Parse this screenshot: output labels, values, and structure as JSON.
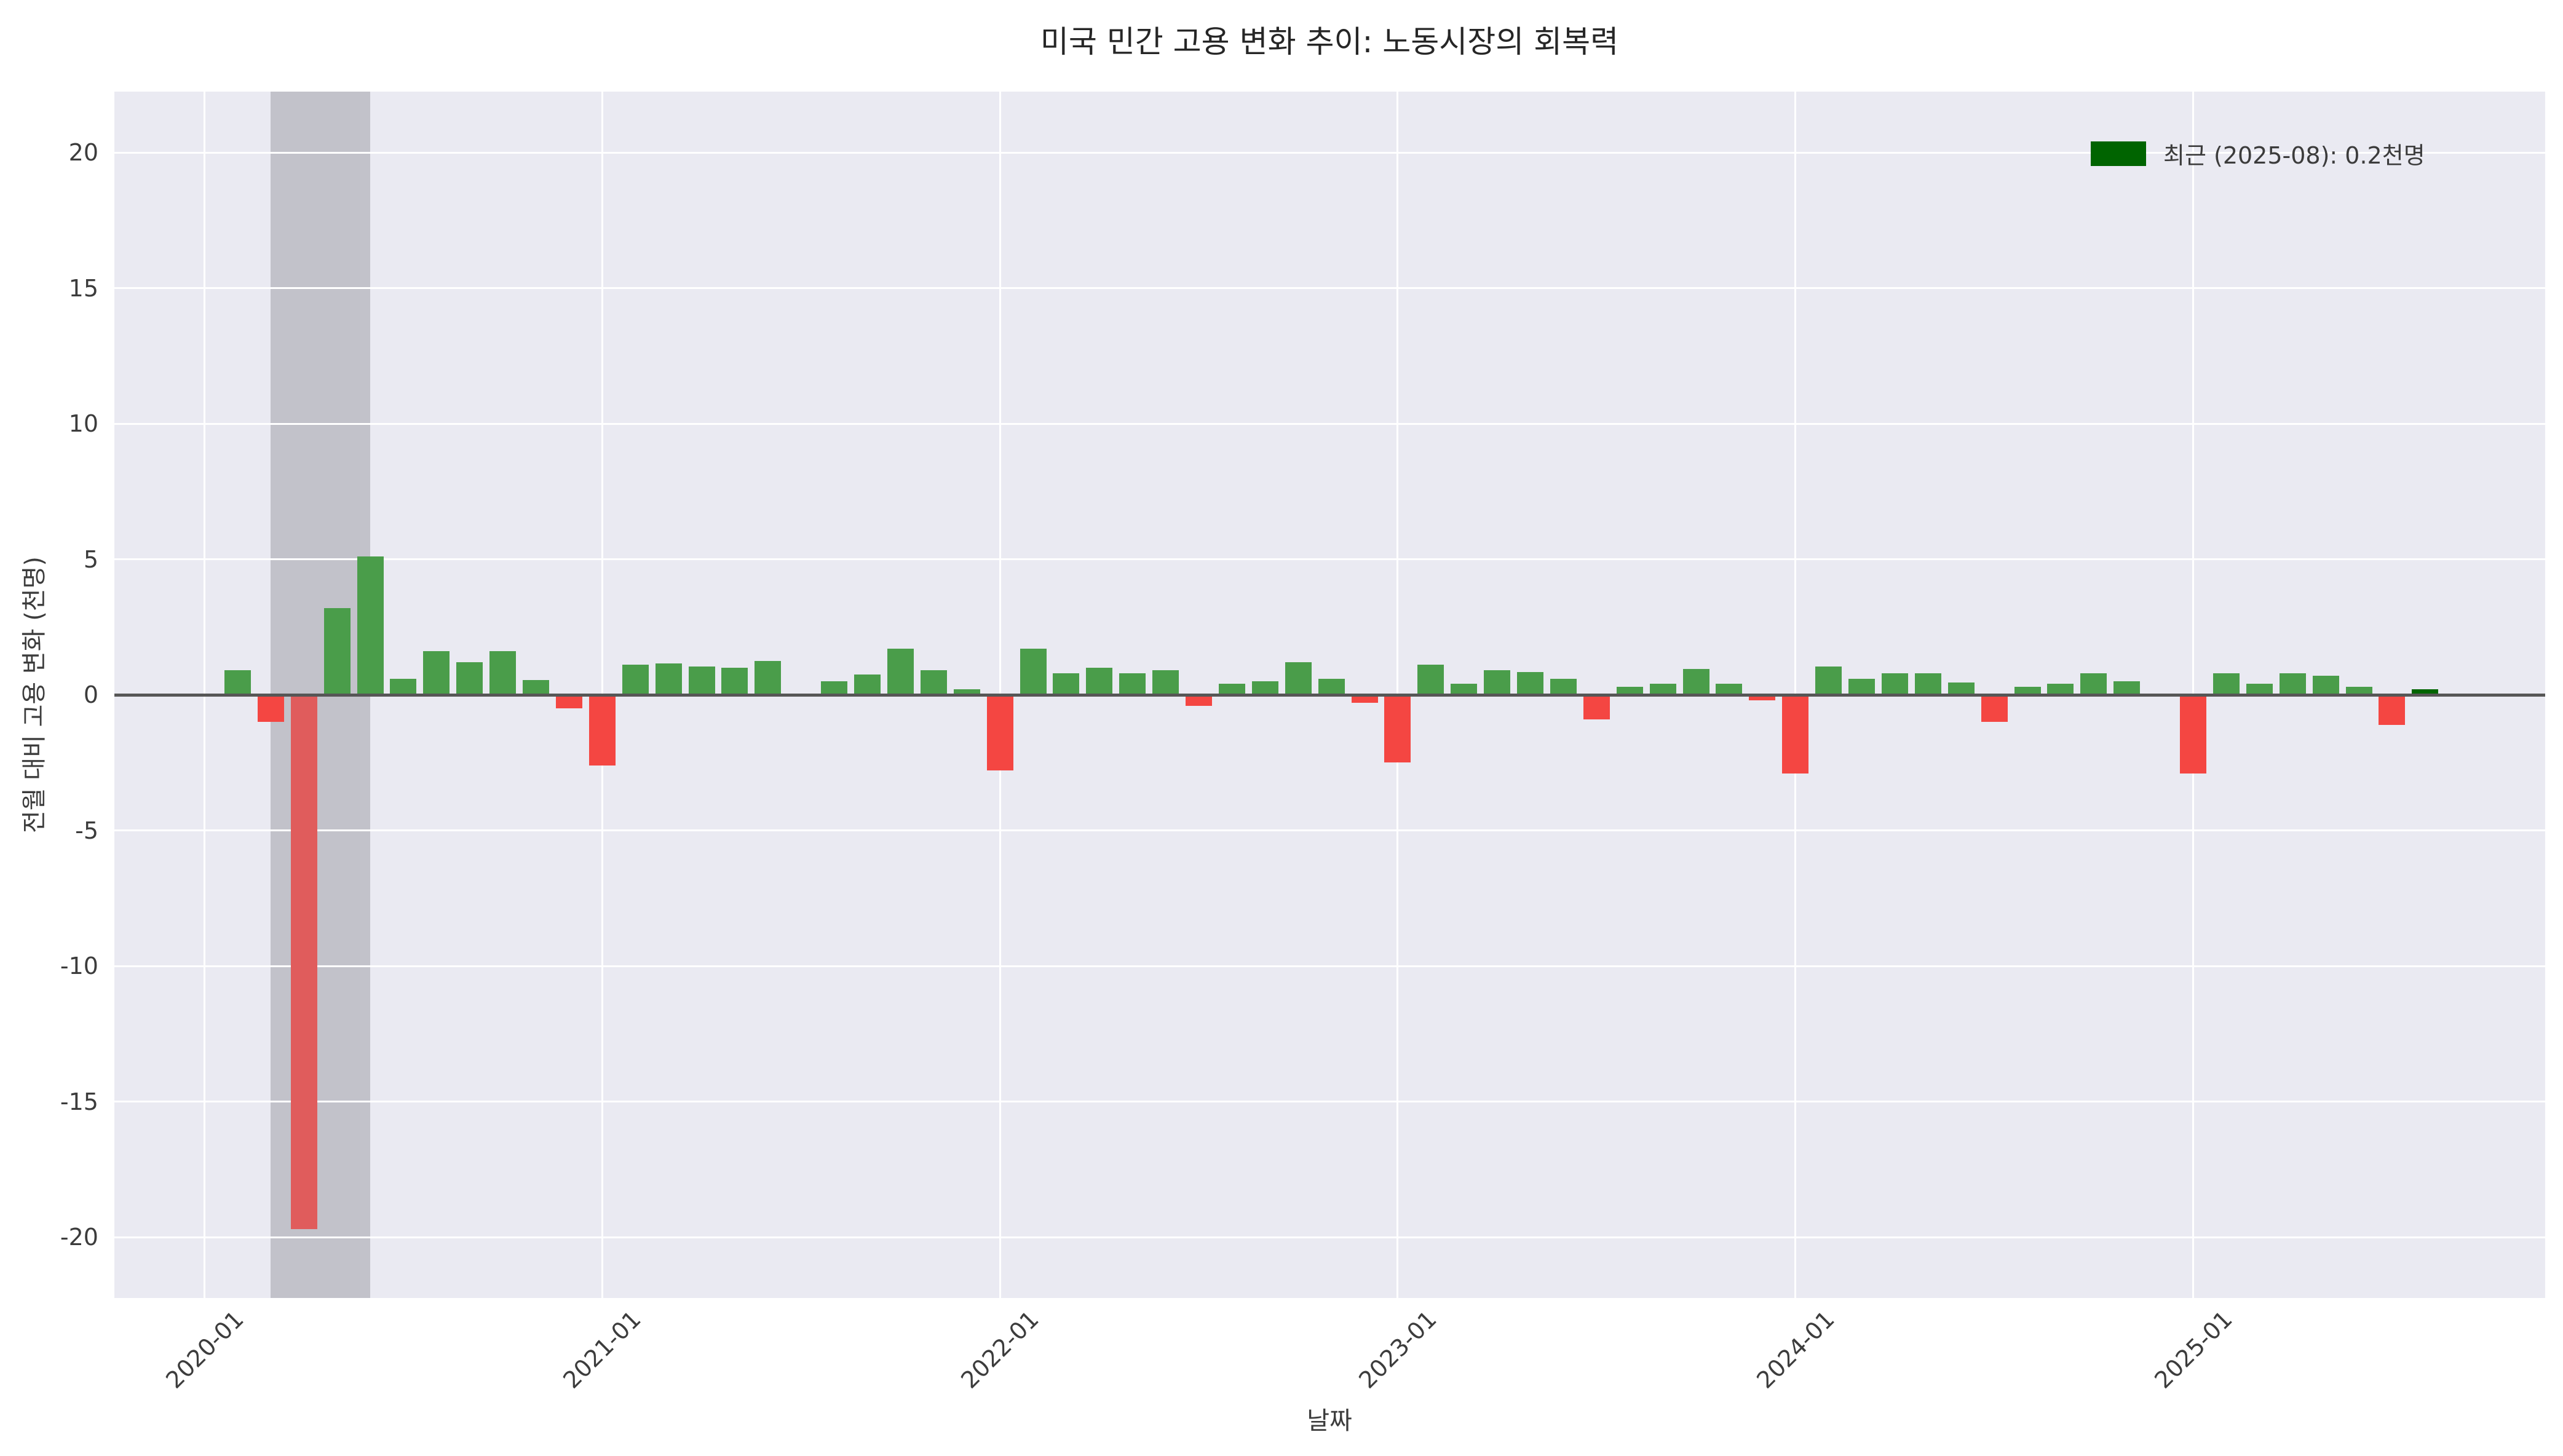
{
  "title": "미국 민간 고용 변화 추이: 노동시장의 회복력",
  "legend": {
    "label": "최근 (2025-08): 0.2천명",
    "swatch_color": "#006400"
  },
  "axes": {
    "xlabel": "날짜",
    "ylabel": "전월 대비 고용 변화 (천명)",
    "yticks": [
      20,
      15,
      10,
      5,
      0,
      -5,
      -10,
      -15,
      -20
    ],
    "xticks": [
      "2020-01",
      "2021-01",
      "2022-01",
      "2023-01",
      "2024-01",
      "2025-01"
    ]
  },
  "colors": {
    "positive_bar": "#4a9d4a",
    "negative_bar": "#f44642",
    "crash_bar": "#e05c5c",
    "latest_bar": "#006400",
    "plot_background": "#eaeaf2",
    "figure_background": "#ffffff",
    "gridline": "#ffffff",
    "zero_line": "#565656",
    "recession_band": "rgba(120,120,128,0.35)"
  },
  "recession_band": {
    "start": "2020-03",
    "end": "2020-06"
  },
  "chart_data": {
    "type": "bar",
    "title": "미국 민간 고용 변화 추이: 노동시장의 회복력",
    "xlabel": "날짜",
    "ylabel": "전월 대비 고용 변화 (천명)",
    "ylim": [
      -22.25,
      22.25
    ],
    "x": [
      "2020-02",
      "2020-03",
      "2020-04",
      "2020-05",
      "2020-06",
      "2020-07",
      "2020-08",
      "2020-09",
      "2020-10",
      "2020-11",
      "2020-12",
      "2021-01",
      "2021-02",
      "2021-03",
      "2021-04",
      "2021-05",
      "2021-06",
      "2021-07",
      "2021-08",
      "2021-09",
      "2021-10",
      "2021-11",
      "2021-12",
      "2022-01",
      "2022-02",
      "2022-03",
      "2022-04",
      "2022-05",
      "2022-06",
      "2022-07",
      "2022-08",
      "2022-09",
      "2022-10",
      "2022-11",
      "2022-12",
      "2023-01",
      "2023-02",
      "2023-03",
      "2023-04",
      "2023-05",
      "2023-06",
      "2023-07",
      "2023-08",
      "2023-09",
      "2023-10",
      "2023-11",
      "2023-12",
      "2024-01",
      "2024-02",
      "2024-03",
      "2024-04",
      "2024-05",
      "2024-06",
      "2024-07",
      "2024-08",
      "2024-09",
      "2024-10",
      "2024-11",
      "2024-12",
      "2025-01",
      "2025-02",
      "2025-03",
      "2025-04",
      "2025-05",
      "2025-06",
      "2025-07",
      "2025-08"
    ],
    "values": [
      0.9,
      -1.0,
      -19.7,
      3.2,
      5.1,
      0.6,
      1.6,
      1.2,
      1.6,
      0.55,
      -0.5,
      -2.6,
      1.1,
      1.15,
      1.05,
      1.0,
      1.25,
      0.0,
      0.5,
      0.75,
      1.7,
      0.9,
      0.2,
      -2.8,
      1.7,
      0.8,
      1.0,
      0.8,
      0.9,
      -0.4,
      0.4,
      0.5,
      1.2,
      0.6,
      -0.3,
      -2.5,
      1.1,
      0.4,
      0.9,
      0.85,
      0.6,
      -0.9,
      0.3,
      0.4,
      0.95,
      0.4,
      -0.2,
      -2.9,
      1.05,
      0.6,
      0.8,
      0.8,
      0.45,
      -1.0,
      0.3,
      0.4,
      0.8,
      0.5,
      0.05,
      -2.9,
      0.8,
      0.4,
      0.8,
      0.7,
      0.3,
      -1.1,
      0.2
    ],
    "latest_point": {
      "x": "2025-08",
      "value": 0.2
    },
    "grid": true,
    "legend_position": "upper right"
  }
}
